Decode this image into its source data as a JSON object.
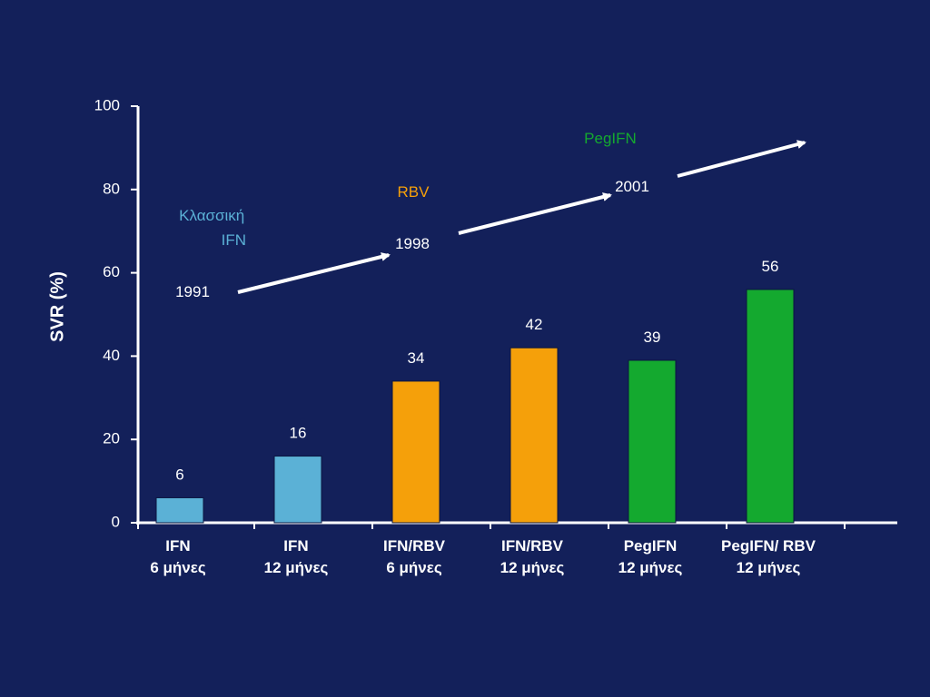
{
  "colors": {
    "background": "#13205a",
    "axis": "#ffffff",
    "ifn": "#5bb1d6",
    "rbv": "#f5a00a",
    "pegifn": "#14a92f"
  },
  "chart_data": {
    "type": "bar",
    "ylabel": "SVR (%)",
    "xlabel": "",
    "ylim": [
      0,
      100
    ],
    "yticks": [
      0,
      20,
      40,
      60,
      80,
      100
    ],
    "grid": false,
    "categories": [
      [
        "IFN",
        "6 μήνες"
      ],
      [
        "IFN",
        "12 μήνες"
      ],
      [
        "IFN/RBV",
        "6 μήνες"
      ],
      [
        "IFN/RBV",
        "12 μήνες"
      ],
      [
        "PegIFN",
        "12 μήνες"
      ],
      [
        "PegIFN/ RBV",
        "12 μήνες"
      ]
    ],
    "values": [
      6,
      16,
      34,
      42,
      39,
      56
    ],
    "data_labels": [
      "6",
      "16",
      "34",
      "42",
      "39",
      "56"
    ],
    "bar_colors": [
      "#5bb1d6",
      "#5bb1d6",
      "#f5a00a",
      "#f5a00a",
      "#14a92f",
      "#14a92f"
    ],
    "annotations": {
      "eras": [
        {
          "lines": [
            "Κλασσική",
            "IFN"
          ],
          "color": "#5bb1d6"
        },
        {
          "lines": [
            "RBV"
          ],
          "color": "#f5a00a"
        },
        {
          "lines": [
            "PegIFN"
          ],
          "color": "#14a92f"
        }
      ],
      "years": [
        "1991",
        "1998",
        "2001"
      ]
    }
  }
}
